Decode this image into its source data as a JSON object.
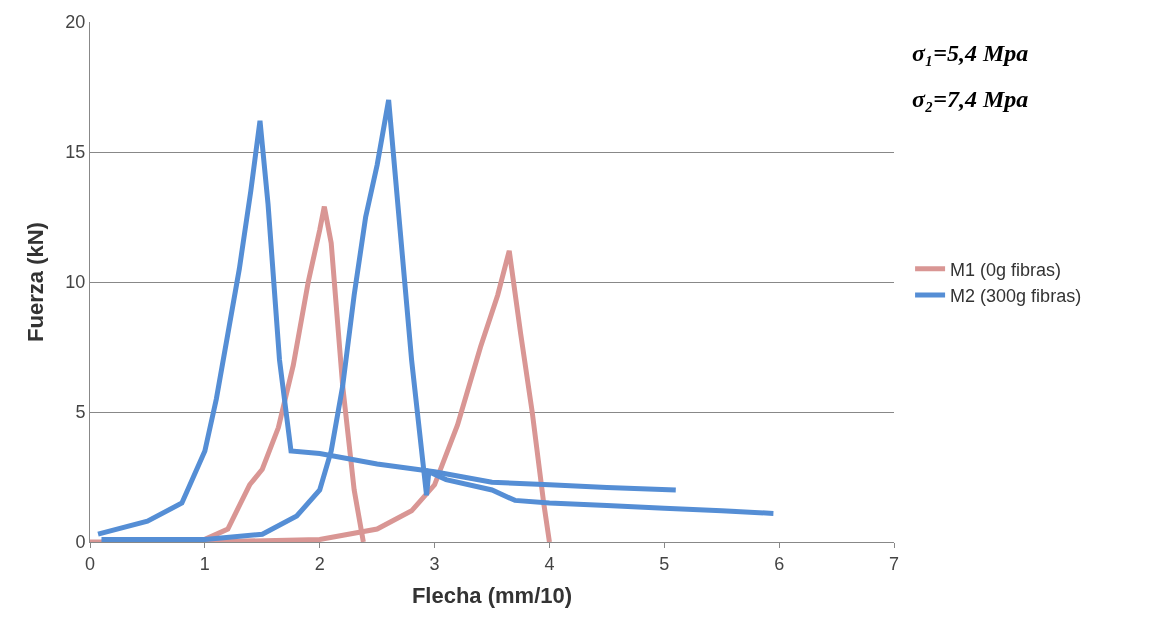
{
  "chart_data": {
    "type": "line",
    "xlabel": "Flecha (mm/10)",
    "ylabel": "Fuerza (kN)",
    "xlim": [
      0,
      7
    ],
    "xticks": [
      0,
      1,
      2,
      3,
      4,
      5,
      6,
      7
    ],
    "ylim": [
      0,
      20
    ],
    "yticks": [
      0,
      5,
      10,
      15,
      20
    ],
    "grid": "y",
    "legend": "right",
    "marker": "none",
    "line_style": "solid",
    "annotations": [
      "σ₁=5,4 Mpa",
      "σ₂=7,4 Mpa"
    ],
    "series": [
      {
        "name": "M1 (0g fibras)",
        "color": "#d99694",
        "x": [
          0,
          0.5,
          1.0,
          1.2,
          1.39,
          1.5,
          1.64,
          1.77,
          1.9,
          2.0,
          2.04,
          2.1,
          2.2,
          2.3,
          2.38,
          null,
          0.1,
          1.0,
          2.0,
          2.5,
          2.8,
          3.0,
          3.2,
          3.4,
          3.55,
          3.65,
          3.75,
          3.85,
          3.95,
          4.0
        ],
        "values": [
          0,
          0,
          0.1,
          0.5,
          2.2,
          2.8,
          4.4,
          6.8,
          10,
          12,
          12.9,
          11.5,
          6,
          2,
          0,
          null,
          0,
          0,
          0.1,
          0.5,
          1.2,
          2.2,
          4.5,
          7.5,
          9.5,
          11.2,
          8,
          5,
          1.5,
          0
        ]
      },
      {
        "name": "M2 (300g fibras)",
        "color": "#558ed5",
        "x": [
          0.07,
          0.5,
          0.8,
          0.9,
          1.0,
          1.1,
          1.2,
          1.3,
          1.4,
          1.48,
          1.55,
          1.65,
          1.75,
          2.0,
          2.5,
          3.0,
          3.5,
          4.0,
          4.5,
          5.1,
          null,
          0.1,
          1.0,
          1.5,
          1.8,
          2.0,
          2.1,
          2.2,
          2.3,
          2.4,
          2.5,
          2.6,
          2.7,
          2.8,
          2.9,
          2.93,
          2.95,
          3.1,
          3.5,
          3.7,
          4.0,
          4.5,
          5.0,
          5.5,
          5.95
        ],
        "values": [
          0.3,
          0.8,
          1.5,
          2.5,
          3.5,
          5.5,
          8,
          10.5,
          13.5,
          16.2,
          13,
          7,
          3.5,
          3.4,
          3.0,
          2.7,
          2.3,
          2.2,
          2.1,
          2.0,
          null,
          0.1,
          0.1,
          0.3,
          1,
          2,
          3.5,
          6,
          9.5,
          12.5,
          14.5,
          17.0,
          12,
          7,
          3,
          1.8,
          2.7,
          2.4,
          2.0,
          1.6,
          1.5,
          1.4,
          1.3,
          1.2,
          1.1
        ]
      }
    ]
  }
}
